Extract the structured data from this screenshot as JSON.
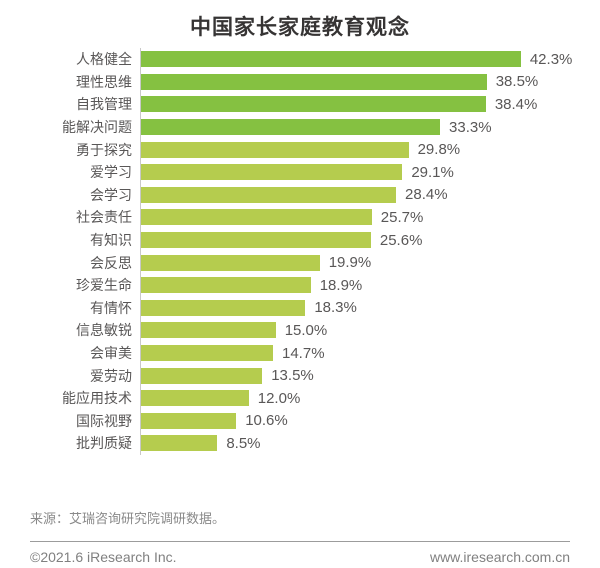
{
  "chart_data": {
    "type": "bar",
    "orientation": "horizontal",
    "title": "中国家长家庭教育观念",
    "categories": [
      "人格健全",
      "理性思维",
      "自我管理",
      "能解决问题",
      "勇于探究",
      "爱学习",
      "会学习",
      "社会责任",
      "有知识",
      "会反思",
      "珍爱生命",
      "有情怀",
      "信息敏锐",
      "会审美",
      "爱劳动",
      "能应用技术",
      "国际视野",
      "批判质疑"
    ],
    "values": [
      42.3,
      38.5,
      38.4,
      33.3,
      29.8,
      29.1,
      28.4,
      25.7,
      25.6,
      19.9,
      18.9,
      18.3,
      15.0,
      14.7,
      13.5,
      12.0,
      10.6,
      8.5
    ],
    "unit": "%",
    "xlim": [
      0,
      43.5
    ],
    "grid": "off",
    "legend": "none",
    "highlight_first_n": 4,
    "colors": {
      "highlight_bar": "#85c141",
      "bar": "#b5cc4e",
      "axis_line": "#c9c9c9",
      "label_text": "#595757",
      "title_text": "#363434"
    }
  },
  "footer": {
    "source": "来源：艾瑞咨询研究院调研数据。",
    "copyright": "©2021.6 iResearch Inc.",
    "website": "www.iresearch.com.cn"
  }
}
